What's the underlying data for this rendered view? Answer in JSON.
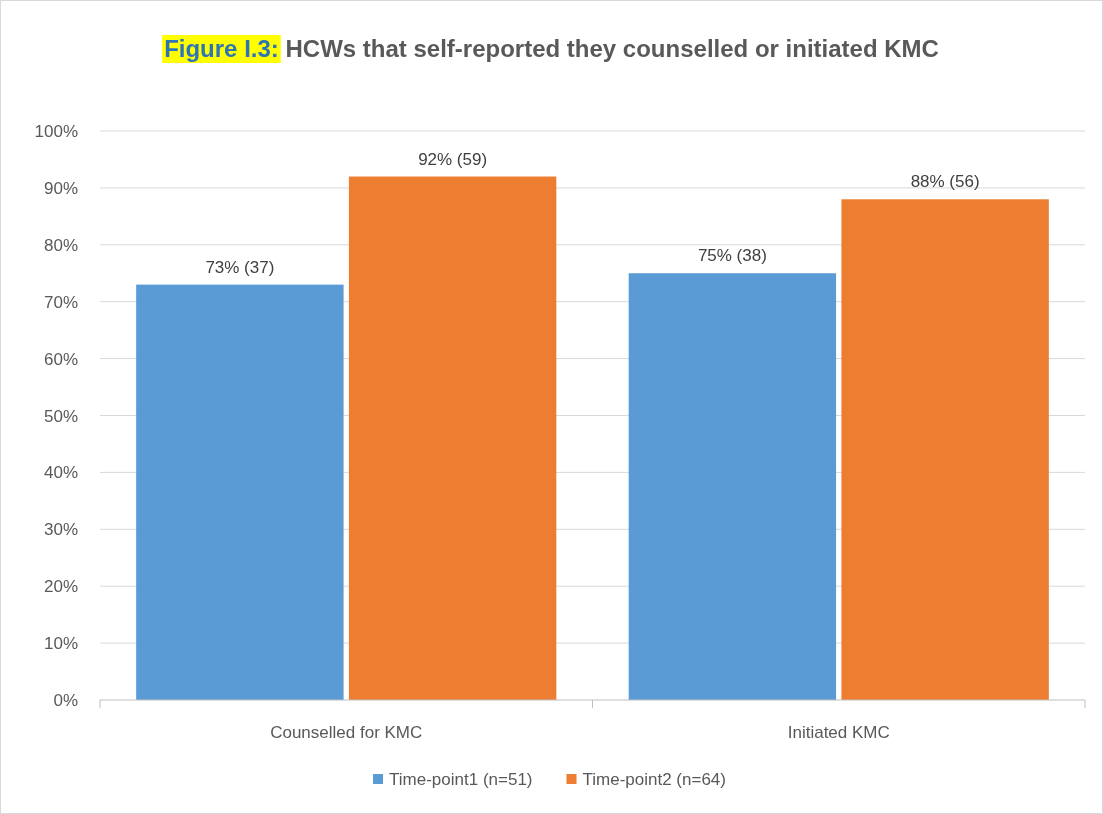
{
  "chart_data": {
    "type": "bar",
    "title": "Figure I.3: HCWs that self-reported they counselled or initiated KMC",
    "categories": [
      "Counselled for KMC",
      "Initiated KMC"
    ],
    "series": [
      {
        "name": "Time-point1 (n=51)",
        "color": "#5b9bd5",
        "values": [
          73,
          75
        ],
        "value_labels": [
          "73% (37)",
          "75% (38)"
        ]
      },
      {
        "name": "Time-point2 (n=64)",
        "color": "#ed7d31",
        "values": [
          92,
          88
        ],
        "value_labels": [
          "92% (59)",
          "88% (56)"
        ]
      }
    ],
    "ylim": [
      0,
      100
    ],
    "yticks": [
      {
        "value": 0,
        "label": "0%"
      },
      {
        "value": 10,
        "label": "10%"
      },
      {
        "value": 20,
        "label": "20%"
      },
      {
        "value": 30,
        "label": "30%"
      },
      {
        "value": 40,
        "label": "40%"
      },
      {
        "value": 50,
        "label": "50%"
      },
      {
        "value": 60,
        "label": "60%"
      },
      {
        "value": 70,
        "label": "70%"
      },
      {
        "value": 80,
        "label": "80%"
      },
      {
        "value": 90,
        "label": "90%"
      },
      {
        "value": 100,
        "label": "100%"
      }
    ],
    "grid": "y",
    "legend": "bottom"
  }
}
